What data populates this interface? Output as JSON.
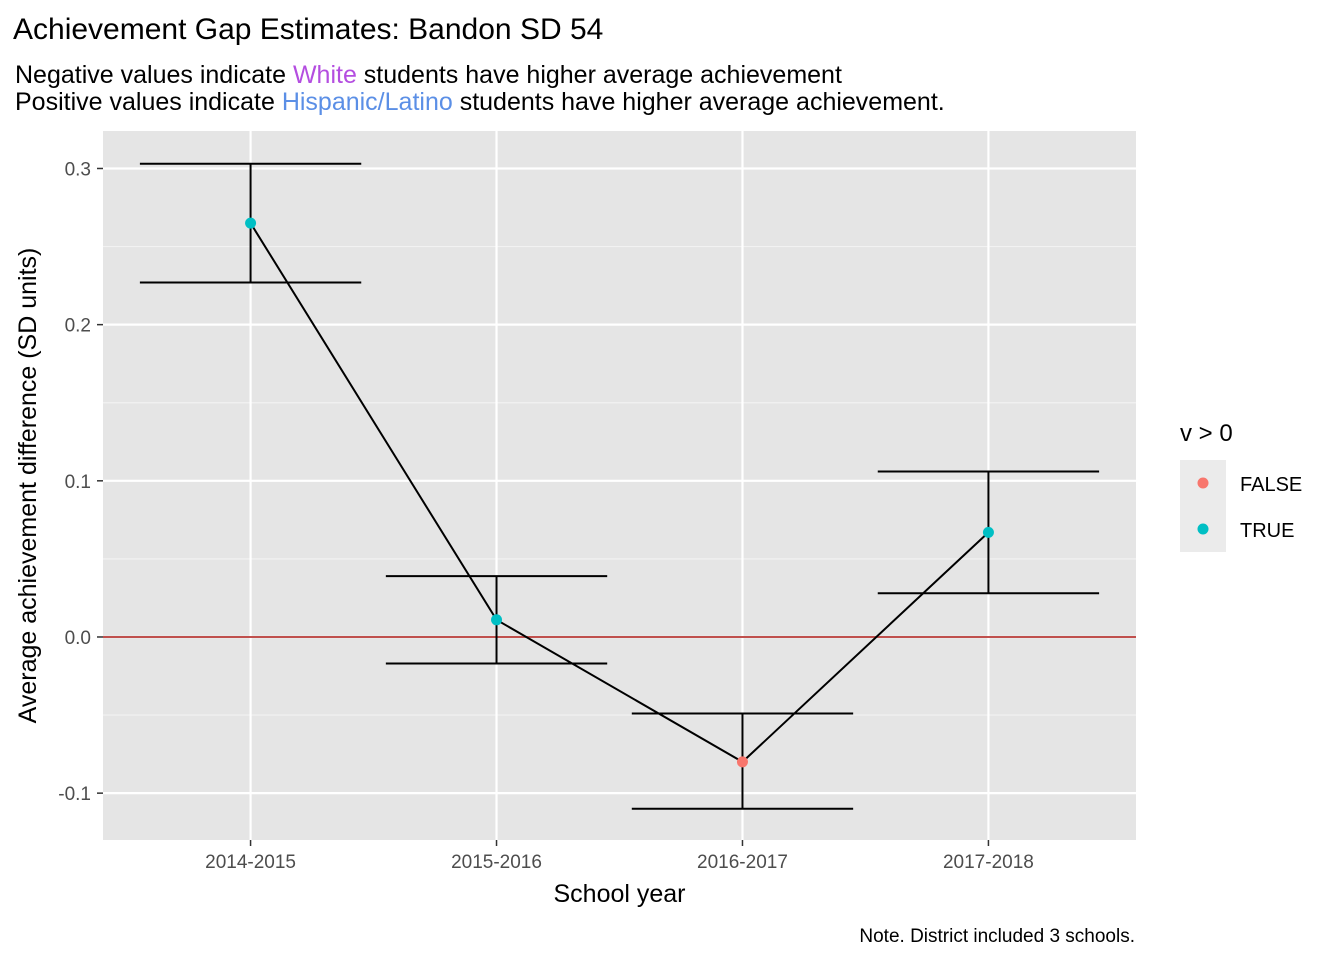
{
  "chart_data": {
    "type": "scatter",
    "title": "Achievement Gap Estimates: Bandon SD 54",
    "subtitle": {
      "line1": {
        "prefix": "Negative values indicate ",
        "group": "White",
        "suffix": " students have higher average achievement",
        "group_color": "#b44ee0"
      },
      "line2": {
        "prefix": "Positive values indicate ",
        "group": "Hispanic/Latino",
        "suffix": " students have higher average achievement.",
        "group_color": "#5b8fe6"
      }
    },
    "xlabel": "School year",
    "ylabel": "Average achievement difference (SD units)",
    "caption": "Note. District included 3 schools.",
    "categories": [
      "2014-2015",
      "2015-2016",
      "2016-2017",
      "2017-2018"
    ],
    "values": [
      0.265,
      0.011,
      -0.08,
      0.067
    ],
    "error_lower": [
      0.227,
      -0.017,
      -0.11,
      0.028
    ],
    "error_upper": [
      0.303,
      0.039,
      -0.049,
      0.106
    ],
    "ylim": [
      -0.13,
      0.324
    ],
    "yticks": [
      -0.1,
      0.0,
      0.1,
      0.2,
      0.3
    ],
    "ytick_labels": [
      "-0.1",
      "0.0",
      "0.1",
      "0.2",
      "0.3"
    ],
    "reference_line": {
      "y": 0,
      "color": "#c0504d"
    },
    "grid": true,
    "panel_background": "#e5e5e5",
    "legend": {
      "title": "v > 0",
      "position": "right",
      "entries": [
        {
          "label": "FALSE",
          "color": "#f8766d"
        },
        {
          "label": "TRUE",
          "color": "#00bfc4"
        }
      ]
    }
  }
}
